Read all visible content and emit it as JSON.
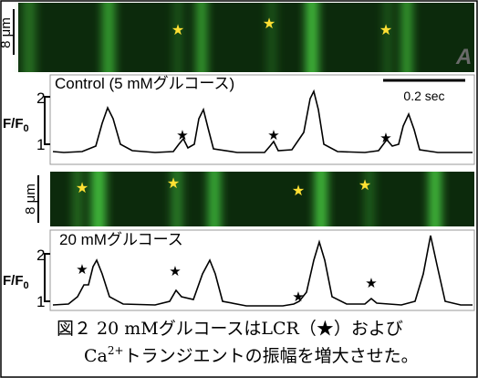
{
  "figure": {
    "panel_top": {
      "scale": "8 μm",
      "letter": "A",
      "label": "Control (5 mMグルコース)",
      "time_scale": "0.2 sec",
      "tick_high": "2",
      "tick_low": "1",
      "ylabel": {
        "main": "F/F",
        "sub": "0"
      }
    },
    "panel_bottom": {
      "scale": "8 μm",
      "label": "20 mMグルコース",
      "tick_high": "2",
      "tick_low": "1",
      "ylabel": {
        "main": "F/F",
        "sub": "0"
      }
    },
    "caption": {
      "line1": "図２ 20 mMグルコースはLCR（★）および",
      "line2_pre": "Ca",
      "line2_sup": "2+",
      "line2_post": "トランジエントの振幅を増大させた。"
    }
  }
}
